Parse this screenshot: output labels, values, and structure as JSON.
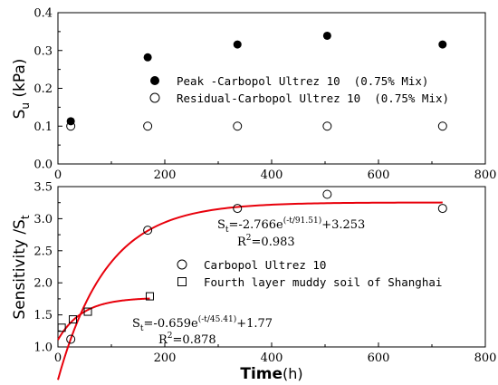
{
  "chart_data": [
    {
      "type": "scatter",
      "xlim": [
        0,
        800
      ],
      "ylim": [
        0.0,
        0.4
      ],
      "xticks": [
        0,
        200,
        400,
        600,
        800
      ],
      "yticks": [
        0.0,
        0.1,
        0.2,
        0.3,
        0.4
      ],
      "xtick_labels": [
        "0",
        "200",
        "400",
        "600",
        "800"
      ],
      "ytick_labels": [
        "0.0",
        "0.1",
        "0.2",
        "0.3",
        "0.4"
      ],
      "ylabel": "S",
      "ylabel_sub": "u",
      "ylabel_unit": " (kPa)",
      "legend_position": "center",
      "series": [
        {
          "name": "Peak -Carbopol Ultrez 10  (0.75% Mix)",
          "marker": "filled-circle",
          "x": [
            24,
            168,
            336,
            504,
            720
          ],
          "y": [
            0.113,
            0.282,
            0.316,
            0.339,
            0.316
          ]
        },
        {
          "name": "Residual-Carbopol Ultrez 10  (0.75% Mix)",
          "marker": "open-circle",
          "x": [
            24,
            168,
            336,
            504,
            720
          ],
          "y": [
            0.1,
            0.1,
            0.1,
            0.1,
            0.1
          ]
        }
      ]
    },
    {
      "type": "scatter",
      "xlim": [
        0,
        800
      ],
      "ylim": [
        1.0,
        3.5
      ],
      "xticks": [
        0,
        200,
        400,
        600,
        800
      ],
      "yticks": [
        1.0,
        1.5,
        2.0,
        2.5,
        3.0,
        3.5
      ],
      "xtick_labels": [
        "0",
        "200",
        "400",
        "600",
        "800"
      ],
      "ytick_labels": [
        "1.0",
        "1.5",
        "2.0",
        "2.5",
        "3.0",
        "3.5"
      ],
      "xlabel": "Time",
      "xlabel_unit": "(h)",
      "ylabel": "Sensitivity /S",
      "ylabel_sub": "t",
      "legend_position": "center",
      "series": [
        {
          "name": "Carbopol Ultrez 10",
          "marker": "open-circle",
          "x": [
            24,
            168,
            336,
            504,
            720
          ],
          "y": [
            1.12,
            2.82,
            3.16,
            3.38,
            3.16
          ]
        },
        {
          "name": "Fourth layer muddy soil of Shanghai",
          "marker": "open-square",
          "x": [
            7,
            28,
            56,
            172
          ],
          "y": [
            1.3,
            1.43,
            1.55,
            1.79
          ]
        }
      ],
      "fits": [
        {
          "color": "#e8000b",
          "equation": {
            "a": -2.766,
            "b": 91.51,
            "c": 3.253
          },
          "x_range": [
            0,
            720
          ],
          "eq_left": "S",
          "eq_sub": "t",
          "eq_mid": "=-2.766e",
          "eq_sup": "(-t/91.51)",
          "eq_right": "+3.253",
          "r2_label": "R",
          "r2_sup": "2",
          "r2_value": "=0.983"
        },
        {
          "color": "#e8000b",
          "equation": {
            "a": -0.659,
            "b": 45.41,
            "c": 1.77
          },
          "x_range": [
            0,
            172
          ],
          "eq_left": "S",
          "eq_sub": "t",
          "eq_mid": "=-0.659e",
          "eq_sup": "(-t/45.41)",
          "eq_right": "+1.77",
          "r2_label": "R",
          "r2_sup": "2",
          "r2_value": "=0.878"
        }
      ]
    }
  ]
}
